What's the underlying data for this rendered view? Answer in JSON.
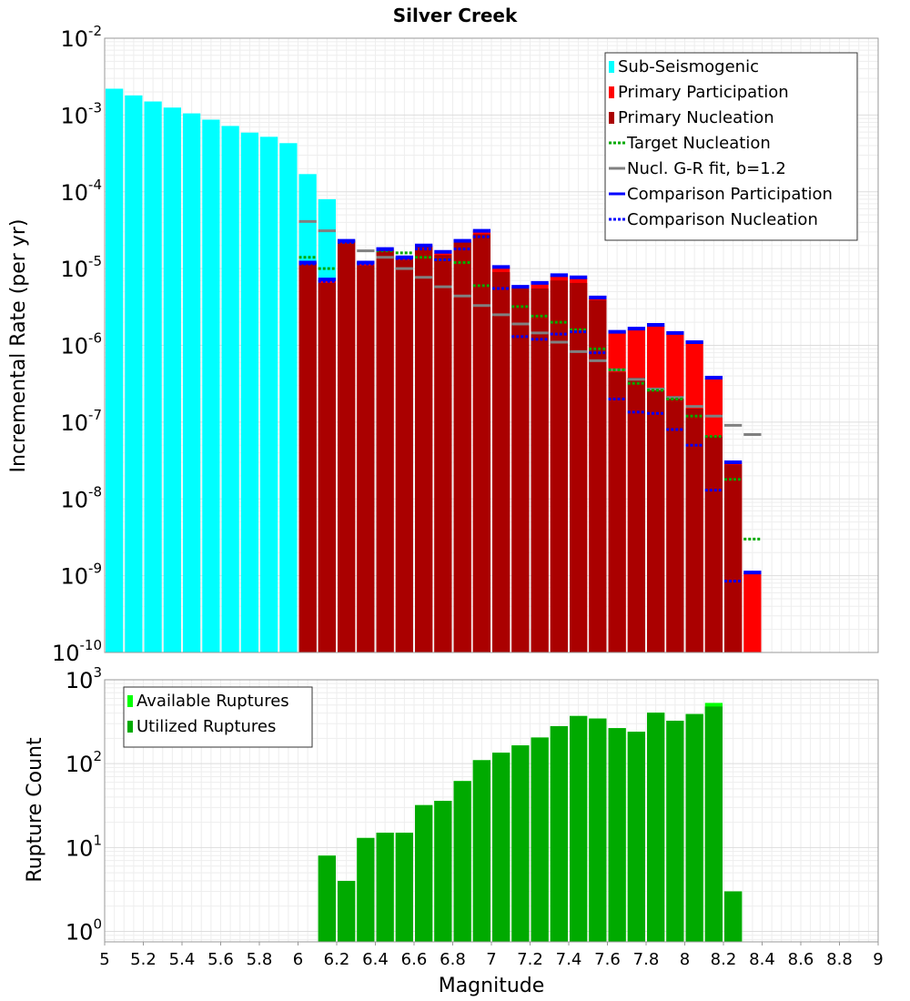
{
  "chart_data": [
    {
      "type": "bar",
      "title": "Silver Creek",
      "xlabel": "",
      "ylabel": "Incremental Rate (per yr)",
      "xlim": [
        5,
        9
      ],
      "ylim": [
        1e-10,
        0.01
      ],
      "yscale": "log",
      "grid": true,
      "legend_position": "top-right",
      "y_tick_labels": [
        {
          "base": "10",
          "exp": "-2"
        },
        {
          "base": "10",
          "exp": "-3"
        },
        {
          "base": "10",
          "exp": "-4"
        },
        {
          "base": "10",
          "exp": "-5"
        },
        {
          "base": "10",
          "exp": "-6"
        },
        {
          "base": "10",
          "exp": "-7"
        },
        {
          "base": "10",
          "exp": "-8"
        },
        {
          "base": "10",
          "exp": "-9"
        },
        {
          "base": "10",
          "exp": "-10"
        }
      ],
      "legend": [
        {
          "label": "Sub-Seismogenic",
          "style": "bar",
          "color": "#00ffff"
        },
        {
          "label": "Primary Participation",
          "style": "bar",
          "color": "#ff0000"
        },
        {
          "label": "Primary Nucleation",
          "style": "bar",
          "color": "#aa0000"
        },
        {
          "label": "Target Nucleation",
          "style": "dotted",
          "color": "#00aa00"
        },
        {
          "label": "Nucl. G-R fit, b=1.2",
          "style": "solid",
          "color": "#808080"
        },
        {
          "label": "Comparison Participation",
          "style": "solid",
          "color": "#0000ff"
        },
        {
          "label": "Comparison Nucleation",
          "style": "dotted",
          "color": "#0000ff"
        }
      ],
      "series": {
        "sub_seismogenic": {
          "x": [
            5.05,
            5.15,
            5.25,
            5.35,
            5.45,
            5.55,
            5.65,
            5.75,
            5.85,
            5.95,
            6.05,
            6.15
          ],
          "values": [
            0.0022,
            0.0018,
            0.0015,
            0.00125,
            0.00105,
            0.00087,
            0.00072,
            0.00059,
            0.00052,
            0.00043,
            0.00017,
            8e-05
          ]
        },
        "primary_participation": {
          "x": [
            6.05,
            6.15,
            6.25,
            6.35,
            6.45,
            6.55,
            6.65,
            6.75,
            6.85,
            6.95,
            7.05,
            7.15,
            7.25,
            7.35,
            7.45,
            7.55,
            7.65,
            7.75,
            7.85,
            7.95,
            8.05,
            8.15,
            8.25,
            8.35
          ],
          "values": [
            1.2e-05,
            7e-06,
            2.3e-05,
            1.2e-05,
            1.8e-05,
            1.4e-05,
            2e-05,
            1.6e-05,
            2.3e-05,
            3.1e-05,
            1.05e-05,
            5.8e-06,
            6.5e-06,
            8e-06,
            7.5e-06,
            4.2e-06,
            1.5e-06,
            1.6e-06,
            1.8e-06,
            1.4e-06,
            1.1e-06,
            3.7e-07,
            3e-08,
            1.1e-09
          ]
        },
        "primary_nucleation": {
          "x": [
            6.05,
            6.15,
            6.25,
            6.35,
            6.45,
            6.55,
            6.65,
            6.75,
            6.85,
            6.95,
            7.05,
            7.15,
            7.25,
            7.35,
            7.45,
            7.55,
            7.65,
            7.75,
            7.85,
            7.95,
            8.05,
            8.15,
            8.25
          ],
          "values": [
            1.2e-05,
            6.5e-06,
            2.3e-05,
            1.1e-05,
            1.7e-05,
            1.3e-05,
            1.9e-05,
            1.5e-05,
            2.2e-05,
            2.8e-05,
            9e-06,
            5.5e-06,
            5.5e-06,
            7e-06,
            6.5e-06,
            3.9e-06,
            4.5e-07,
            3.8e-07,
            2.8e-07,
            2.2e-07,
            1.5e-07,
            6.5e-08,
            2.8e-08
          ]
        },
        "target_nucleation": {
          "x": [
            6.05,
            6.15,
            6.25,
            6.35,
            6.45,
            6.55,
            6.65,
            6.75,
            6.85,
            6.95,
            7.05,
            7.15,
            7.25,
            7.35,
            7.45,
            7.55,
            7.65,
            7.75,
            7.85,
            7.95,
            8.05,
            8.15,
            8.25,
            8.35
          ],
          "values": [
            1.4e-05,
            1e-05,
            2.2e-05,
            1.2e-05,
            1.7e-05,
            1.6e-05,
            1.4e-05,
            1.3e-05,
            1.2e-05,
            6e-06,
            5.5e-06,
            3.2e-06,
            2.4e-06,
            2e-06,
            1.6e-06,
            9e-07,
            4.8e-07,
            3.2e-07,
            2.6e-07,
            2e-07,
            1.2e-07,
            6.5e-08,
            1.8e-08,
            3e-09
          ]
        },
        "nucl_gr_fit": {
          "x": [
            6.05,
            6.15,
            6.25,
            6.35,
            6.45,
            6.55,
            6.65,
            6.75,
            6.85,
            6.95,
            7.05,
            7.15,
            7.25,
            7.35,
            7.45,
            7.55,
            7.65,
            7.75,
            7.85,
            7.95,
            8.05,
            8.15,
            8.25,
            8.35
          ],
          "values": [
            4.1e-05,
            3.1e-05,
            2.3e-05,
            1.7e-05,
            1.4e-05,
            1e-05,
            7.7e-06,
            5.8e-06,
            4.4e-06,
            3.3e-06,
            2.5e-06,
            1.9e-06,
            1.45e-06,
            1.1e-06,
            8.3e-07,
            6.3e-07,
            4.8e-07,
            3.6e-07,
            2.7e-07,
            2.1e-07,
            1.6e-07,
            1.2e-07,
            9.1e-08,
            6.9e-08
          ]
        },
        "comparison_participation": {
          "x": [
            6.05,
            6.15,
            6.25,
            6.35,
            6.45,
            6.55,
            6.65,
            6.75,
            6.85,
            6.95,
            7.05,
            7.15,
            7.25,
            7.35,
            7.45,
            7.55,
            7.65,
            7.75,
            7.85,
            7.95,
            8.05,
            8.15,
            8.25,
            8.35
          ],
          "values": [
            1.2e-05,
            7.2e-06,
            2.3e-05,
            1.2e-05,
            1.8e-05,
            1.4e-05,
            2e-05,
            1.65e-05,
            2.3e-05,
            3.1e-05,
            1.05e-05,
            5.8e-06,
            6.5e-06,
            8.2e-06,
            7.7e-06,
            4.2e-06,
            1.5e-06,
            1.65e-06,
            1.85e-06,
            1.45e-06,
            1.1e-06,
            3.8e-07,
            3e-08,
            1.1e-09
          ]
        },
        "comparison_nucleation": {
          "x": [
            6.05,
            6.15,
            6.25,
            6.35,
            6.45,
            6.55,
            6.65,
            6.75,
            6.85,
            6.95,
            7.05,
            7.15,
            7.25,
            7.35,
            7.45,
            7.55,
            7.65,
            7.75,
            7.85,
            7.95,
            8.05,
            8.15,
            8.25
          ],
          "values": [
            1.15e-05,
            6.8e-06,
            2.2e-05,
            1.15e-05,
            1.75e-05,
            1.35e-05,
            1.8e-05,
            1.3e-05,
            1.8e-05,
            2.6e-05,
            5.5e-06,
            1.3e-06,
            1.2e-06,
            1.4e-06,
            1.5e-06,
            8e-07,
            2e-07,
            1.35e-07,
            1.3e-07,
            8e-08,
            5e-08,
            1.3e-08,
            8.5e-10
          ]
        }
      }
    },
    {
      "type": "bar",
      "title": "",
      "xlabel": "Magnitude",
      "ylabel": "Rupture Count",
      "xlim": [
        5,
        9
      ],
      "ylim": [
        0.75,
        1000
      ],
      "yscale": "log",
      "grid": true,
      "legend_position": "top-left",
      "y_tick_labels": [
        {
          "base": "10",
          "exp": "3"
        },
        {
          "base": "10",
          "exp": "2"
        },
        {
          "base": "10",
          "exp": "1"
        },
        {
          "base": "10",
          "exp": "0"
        }
      ],
      "x_tick_labels": [
        "5",
        "5.2",
        "5.4",
        "5.6",
        "5.8",
        "6",
        "6.2",
        "6.4",
        "6.6",
        "6.8",
        "7",
        "7.2",
        "7.4",
        "7.6",
        "7.8",
        "8",
        "8.2",
        "8.4",
        "8.6",
        "8.8",
        "9"
      ],
      "legend": [
        {
          "label": "Available Ruptures",
          "style": "bar",
          "color": "#00ff00"
        },
        {
          "label": "Utilized Ruptures",
          "style": "bar",
          "color": "#00aa00"
        }
      ],
      "series": {
        "available": {
          "x": [
            6.15,
            6.25,
            6.35,
            6.45,
            6.55,
            6.65,
            6.75,
            6.85,
            6.95,
            7.05,
            7.15,
            7.25,
            7.35,
            7.45,
            7.55,
            7.65,
            7.75,
            7.85,
            7.95,
            8.05,
            8.15,
            8.25
          ],
          "values": [
            8,
            4,
            13,
            15,
            15,
            32,
            36,
            62,
            110,
            135,
            165,
            205,
            280,
            370,
            345,
            265,
            240,
            405,
            325,
            390,
            530,
            3
          ]
        },
        "utilized": {
          "x": [
            6.15,
            6.25,
            6.35,
            6.45,
            6.55,
            6.65,
            6.75,
            6.85,
            6.95,
            7.05,
            7.15,
            7.25,
            7.35,
            7.45,
            7.55,
            7.65,
            7.75,
            7.85,
            7.95,
            8.05,
            8.15,
            8.25
          ],
          "values": [
            8,
            4,
            13,
            15,
            15,
            32,
            36,
            62,
            110,
            135,
            165,
            205,
            280,
            370,
            345,
            265,
            240,
            405,
            325,
            390,
            480,
            3
          ]
        }
      }
    }
  ]
}
